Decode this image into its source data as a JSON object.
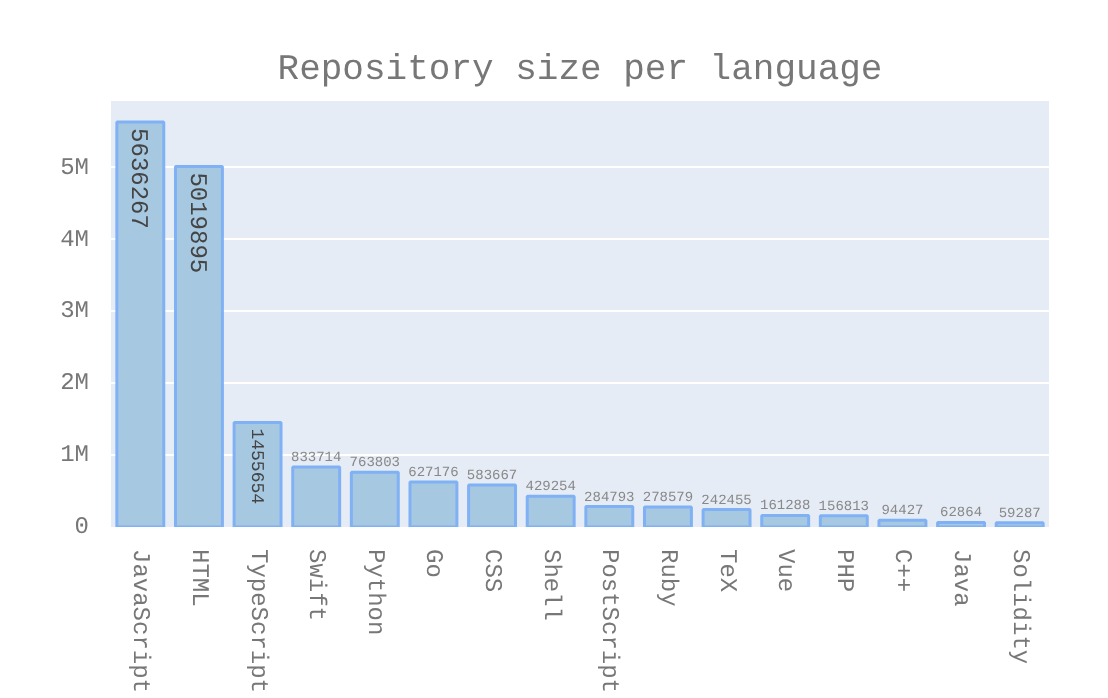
{
  "chart_data": {
    "type": "bar",
    "title": "Repository size per language",
    "categories": [
      "JavaScript",
      "HTML",
      "TypeScript",
      "Swift",
      "Python",
      "Go",
      "CSS",
      "Shell",
      "PostScript",
      "Ruby",
      "TeX",
      "Vue",
      "PHP",
      "C++",
      "Java",
      "Solidity"
    ],
    "values": [
      5636267,
      5019895,
      1455654,
      833714,
      763803,
      627176,
      583667,
      429254,
      284793,
      278579,
      242455,
      161288,
      156813,
      94427,
      62864,
      59287
    ],
    "color": "#a7c8e1",
    "ylim": [
      0,
      5930000
    ],
    "yticks": [
      {
        "value": 0,
        "label": "0"
      },
      {
        "value": 1000000,
        "label": "1M"
      },
      {
        "value": 2000000,
        "label": "2M"
      },
      {
        "value": 3000000,
        "label": "3M"
      },
      {
        "value": 4000000,
        "label": "4M"
      },
      {
        "value": 5000000,
        "label": "5M"
      }
    ],
    "grid": "y",
    "data_labels": true
  }
}
